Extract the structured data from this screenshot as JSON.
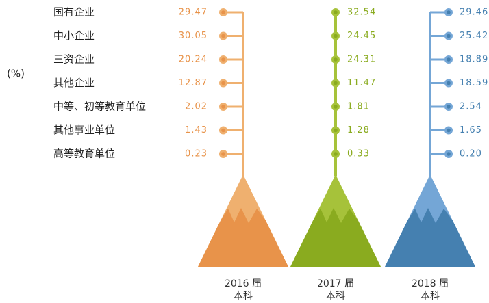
{
  "chart_data": {
    "type": "dot-column",
    "unit_label": "(%)",
    "categories": [
      "国有企业",
      "中小企业",
      "三资企业",
      "其他企业",
      "中等、初等教育单位",
      "其他事业单位",
      "高等教育单位"
    ],
    "series": [
      {
        "name": "2016 届",
        "sub": "本科",
        "color": "#e8934a",
        "light": "#efb06f",
        "values": [
          29.47,
          30.05,
          20.24,
          12.87,
          2.02,
          1.43,
          0.23
        ],
        "value_labels": [
          "29.47",
          "30.05",
          "20.24",
          "12.87",
          "2.02",
          "1.43",
          "0.23"
        ]
      },
      {
        "name": "2017 届",
        "sub": "本科",
        "color": "#8aab1f",
        "light": "#a6c23a",
        "values": [
          32.54,
          24.45,
          24.31,
          11.47,
          1.81,
          1.28,
          0.33
        ],
        "value_labels": [
          "32.54",
          "24.45",
          "24.31",
          "11.47",
          "1.81",
          "1.28",
          "0.33"
        ]
      },
      {
        "name": "2018 届",
        "sub": "本科",
        "color": "#4580b0",
        "light": "#74a6d6",
        "values": [
          29.46,
          25.42,
          18.89,
          18.59,
          2.54,
          1.65,
          0.2
        ],
        "value_labels": [
          "29.46",
          "25.42",
          "18.89",
          "18.59",
          "2.54",
          "1.65",
          "0.20"
        ]
      }
    ]
  }
}
